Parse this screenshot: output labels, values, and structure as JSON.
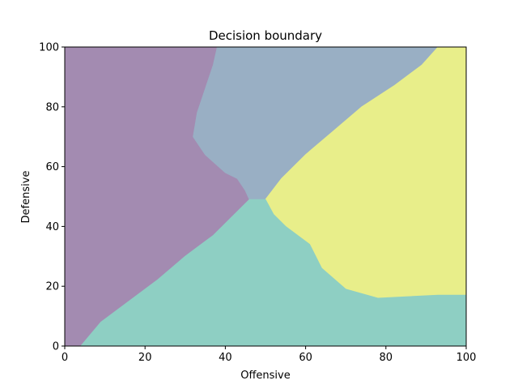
{
  "chart_data": {
    "type": "area",
    "title": "Decision boundary",
    "xlabel": "Offensive",
    "ylabel": "Defensive",
    "xlim": [
      0,
      100
    ],
    "ylim": [
      0,
      100
    ],
    "xticks": [
      0,
      20,
      40,
      60,
      80,
      100
    ],
    "yticks": [
      0,
      20,
      40,
      60,
      80,
      100
    ],
    "grid": false,
    "regions": [
      {
        "color": "#a38bb1",
        "polygon": [
          [
            0,
            100
          ],
          [
            38,
            100
          ],
          [
            37,
            94
          ],
          [
            35,
            86
          ],
          [
            33,
            78
          ],
          [
            32,
            70
          ],
          [
            35,
            64
          ],
          [
            40,
            58
          ],
          [
            43,
            56
          ],
          [
            45,
            52
          ],
          [
            46,
            49
          ],
          [
            37,
            37
          ],
          [
            30,
            30
          ],
          [
            23,
            22
          ],
          [
            16,
            15
          ],
          [
            9,
            8
          ],
          [
            4,
            0
          ],
          [
            0,
            0
          ]
        ]
      },
      {
        "color": "#99afc4",
        "polygon": [
          [
            38,
            100
          ],
          [
            93,
            100
          ],
          [
            89,
            94
          ],
          [
            82,
            87
          ],
          [
            74,
            80
          ],
          [
            67,
            72
          ],
          [
            60,
            64
          ],
          [
            54,
            56
          ],
          [
            50,
            49
          ],
          [
            46,
            49
          ],
          [
            45,
            52
          ],
          [
            43,
            56
          ],
          [
            40,
            58
          ],
          [
            35,
            64
          ],
          [
            32,
            70
          ],
          [
            33,
            78
          ],
          [
            35,
            86
          ],
          [
            37,
            94
          ]
        ]
      },
      {
        "color": "#e8ee8a",
        "polygon": [
          [
            93,
            100
          ],
          [
            100,
            100
          ],
          [
            100,
            17
          ],
          [
            93,
            17
          ],
          [
            78,
            16
          ],
          [
            70,
            19
          ],
          [
            64,
            26
          ],
          [
            61,
            34
          ],
          [
            55,
            40
          ],
          [
            52,
            44
          ],
          [
            50,
            49
          ],
          [
            54,
            56
          ],
          [
            60,
            64
          ],
          [
            67,
            72
          ],
          [
            74,
            80
          ],
          [
            82,
            87
          ],
          [
            89,
            94
          ]
        ]
      },
      {
        "color": "#8ecfc3",
        "polygon": [
          [
            4,
            0
          ],
          [
            100,
            0
          ],
          [
            100,
            17
          ],
          [
            93,
            17
          ],
          [
            78,
            16
          ],
          [
            70,
            19
          ],
          [
            64,
            26
          ],
          [
            61,
            34
          ],
          [
            55,
            40
          ],
          [
            52,
            44
          ],
          [
            50,
            49
          ],
          [
            46,
            49
          ],
          [
            37,
            37
          ],
          [
            30,
            30
          ],
          [
            23,
            22
          ],
          [
            16,
            15
          ],
          [
            9,
            8
          ]
        ]
      }
    ]
  }
}
